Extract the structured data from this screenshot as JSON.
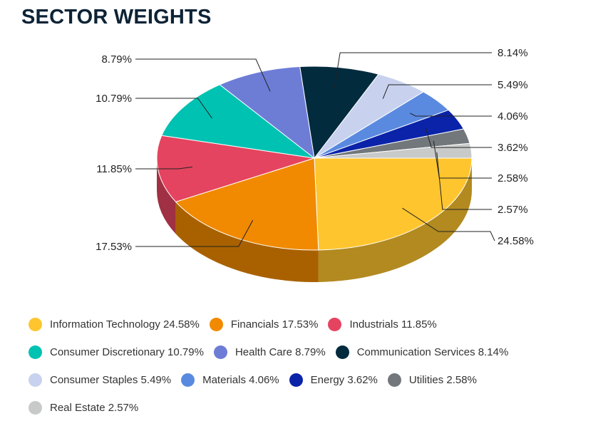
{
  "title": "SECTOR WEIGHTS",
  "chart_data": {
    "type": "pie",
    "title": "SECTOR WEIGHTS",
    "style": "3d",
    "legend_position": "bottom",
    "slices": [
      {
        "name": "Information Technology",
        "value": 24.58,
        "label": "24.58%",
        "legend": "Information Technology 24.58%",
        "color": "#fec52e"
      },
      {
        "name": "Financials",
        "value": 17.53,
        "label": "17.53%",
        "legend": "Financials 17.53%",
        "color": "#f18a00"
      },
      {
        "name": "Industrials",
        "value": 11.85,
        "label": "11.85%",
        "legend": "Industrials 11.85%",
        "color": "#e4445f"
      },
      {
        "name": "Consumer Discretionary",
        "value": 10.79,
        "label": "10.79%",
        "legend": "Consumer Discretionary 10.79%",
        "color": "#00c2b2"
      },
      {
        "name": "Health Care",
        "value": 8.79,
        "label": "8.79%",
        "legend": "Health Care 8.79%",
        "color": "#6d7dd6"
      },
      {
        "name": "Communication Services",
        "value": 8.14,
        "label": "8.14%",
        "legend": "Communication Services 8.14%",
        "color": "#022b3e"
      },
      {
        "name": "Consumer Staples",
        "value": 5.49,
        "label": "5.49%",
        "legend": "Consumer Staples 5.49%",
        "color": "#c8d2ee"
      },
      {
        "name": "Materials",
        "value": 4.06,
        "label": "4.06%",
        "legend": "Materials 4.06%",
        "color": "#5a8ae0"
      },
      {
        "name": "Energy",
        "value": 3.62,
        "label": "3.62%",
        "legend": "Energy 3.62%",
        "color": "#0a23a8"
      },
      {
        "name": "Utilities",
        "value": 2.58,
        "label": "2.58%",
        "legend": "Utilities 2.58%",
        "color": "#72777c"
      },
      {
        "name": "Real Estate",
        "value": 2.57,
        "label": "2.57%",
        "legend": "Real Estate 2.57%",
        "color": "#c8c9c9"
      }
    ]
  }
}
